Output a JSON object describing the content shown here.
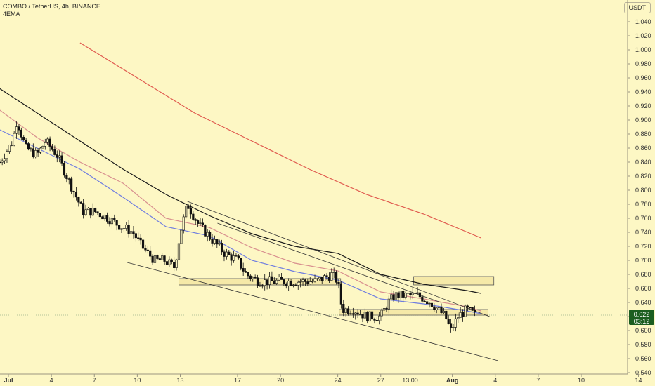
{
  "header": {
    "title": "COMBO / TetherUS, 4h, BINANCE",
    "indicator": "4EMA",
    "currency": "USDT"
  },
  "price_tag": {
    "price": "0.622",
    "countdown": "03:12",
    "color": "#1b5e20"
  },
  "colors": {
    "background": "#fdf7c4",
    "ema_black": "#1a1a1a",
    "ema_red": "#e05a4f",
    "ema_pink": "#d88f8f",
    "ema_blue": "#6f7de0",
    "zone_fill": "#f5e9a8"
  },
  "chart_data": {
    "type": "candlestick",
    "ylim": [
      0.54,
      1.05
    ],
    "y_ticks": [
      "1.040",
      "1.020",
      "1.000",
      "0.980",
      "0.960",
      "0.940",
      "0.920",
      "0.900",
      "0.880",
      "0.860",
      "0.840",
      "0.820",
      "0.800",
      "0.780",
      "0.760",
      "0.740",
      "0.720",
      "0.700",
      "0.680",
      "0.660",
      "0.640",
      "0.620",
      "0.600",
      "0.580",
      "0.560",
      "0.540"
    ],
    "x_ticks": [
      {
        "label": "Jul",
        "day": 1,
        "bold": true
      },
      {
        "label": "4",
        "day": 4
      },
      {
        "label": "7",
        "day": 7
      },
      {
        "label": "10",
        "day": 10
      },
      {
        "label": "13",
        "day": 13
      },
      {
        "label": "17",
        "day": 17
      },
      {
        "label": "20",
        "day": 20
      },
      {
        "label": "24",
        "day": 24
      },
      {
        "label": "27",
        "day": 27
      },
      {
        "label": "13:00",
        "day": 29.05
      },
      {
        "label": "Aug",
        "day": 32,
        "bold": true
      },
      {
        "label": "4",
        "day": 35
      },
      {
        "label": "7",
        "day": 38
      },
      {
        "label": "10",
        "day": 41
      },
      {
        "label": "14",
        "day": 45
      }
    ],
    "close_path": [
      [
        0.4,
        0.84
      ],
      [
        1.3,
        0.87
      ],
      [
        1.6,
        0.9
      ],
      [
        2.2,
        0.86
      ],
      [
        3.0,
        0.85
      ],
      [
        3.6,
        0.87
      ],
      [
        4.4,
        0.85
      ],
      [
        5.3,
        0.81
      ],
      [
        6.2,
        0.77
      ],
      [
        7.0,
        0.77
      ],
      [
        8.0,
        0.76
      ],
      [
        8.7,
        0.75
      ],
      [
        9.7,
        0.74
      ],
      [
        10.3,
        0.72
      ],
      [
        11.2,
        0.7
      ],
      [
        11.9,
        0.7
      ],
      [
        12.6,
        0.69
      ],
      [
        13.0,
        0.74
      ],
      [
        13.5,
        0.78
      ],
      [
        14.3,
        0.75
      ],
      [
        15.2,
        0.73
      ],
      [
        16.1,
        0.71
      ],
      [
        17.0,
        0.7
      ],
      [
        17.6,
        0.68
      ],
      [
        18.5,
        0.67
      ],
      [
        19.5,
        0.67
      ],
      [
        20.4,
        0.67
      ],
      [
        21.5,
        0.67
      ],
      [
        22.5,
        0.67
      ],
      [
        23.6,
        0.68
      ],
      [
        24.0,
        0.67
      ],
      [
        24.3,
        0.63
      ],
      [
        25.1,
        0.63
      ],
      [
        26.0,
        0.62
      ],
      [
        27.0,
        0.62
      ],
      [
        27.5,
        0.64
      ],
      [
        28.0,
        0.65
      ],
      [
        28.8,
        0.65
      ],
      [
        29.6,
        0.65
      ],
      [
        30.5,
        0.64
      ],
      [
        31.0,
        0.63
      ],
      [
        31.5,
        0.62
      ],
      [
        31.9,
        0.6
      ],
      [
        32.4,
        0.62
      ],
      [
        33.0,
        0.63
      ],
      [
        33.6,
        0.622
      ]
    ],
    "emas": [
      {
        "color": "#e05a4f",
        "points": [
          [
            6.0,
            1.01
          ],
          [
            10.0,
            0.96
          ],
          [
            14.0,
            0.91
          ],
          [
            18.0,
            0.87
          ],
          [
            22.0,
            0.83
          ],
          [
            26.0,
            0.794
          ],
          [
            30.0,
            0.766
          ],
          [
            34.0,
            0.732
          ]
        ]
      },
      {
        "color": "#1a1a1a",
        "points": [
          [
            0,
            0.95
          ],
          [
            3.0,
            0.91
          ],
          [
            6.0,
            0.87
          ],
          [
            9.0,
            0.83
          ],
          [
            12.0,
            0.794
          ],
          [
            15.0,
            0.764
          ],
          [
            18.0,
            0.738
          ],
          [
            21.0,
            0.72
          ],
          [
            24.0,
            0.71
          ],
          [
            27.0,
            0.68
          ],
          [
            30.0,
            0.666
          ],
          [
            33.0,
            0.657
          ],
          [
            34.0,
            0.653
          ]
        ]
      },
      {
        "color": "#d88f8f",
        "points": [
          [
            0,
            0.92
          ],
          [
            3.0,
            0.875
          ],
          [
            6.0,
            0.84
          ],
          [
            9.0,
            0.81
          ],
          [
            12.0,
            0.76
          ],
          [
            15.0,
            0.747
          ],
          [
            18.0,
            0.718
          ],
          [
            21.0,
            0.696
          ],
          [
            24.0,
            0.685
          ],
          [
            27.0,
            0.655
          ],
          [
            30.0,
            0.645
          ],
          [
            33.0,
            0.634
          ],
          [
            34.0,
            0.628
          ]
        ]
      },
      {
        "color": "#6f7de0",
        "points": [
          [
            0,
            0.89
          ],
          [
            3.0,
            0.86
          ],
          [
            6.0,
            0.83
          ],
          [
            9.0,
            0.79
          ],
          [
            12.0,
            0.748
          ],
          [
            15.0,
            0.735
          ],
          [
            18.0,
            0.7
          ],
          [
            21.0,
            0.684
          ],
          [
            24.0,
            0.672
          ],
          [
            27.0,
            0.645
          ],
          [
            30.0,
            0.638
          ],
          [
            33.0,
            0.628
          ],
          [
            34.0,
            0.624
          ]
        ]
      }
    ],
    "trendlines": [
      {
        "from": [
          9.3,
          0.697
        ],
        "to": [
          35.2,
          0.557
        ]
      },
      {
        "from": [
          13.5,
          0.784
        ],
        "to": [
          34.6,
          0.62
        ]
      },
      {
        "from": [
          15.6,
          0.753
        ],
        "to": [
          31.2,
          0.64
        ]
      }
    ],
    "zones": [
      {
        "x1": 12.9,
        "x2": 24.2,
        "y1": 0.665,
        "y2": 0.674
      },
      {
        "x1": 29.3,
        "x2": 34.9,
        "y1": 0.665,
        "y2": 0.677
      },
      {
        "x1": 24.1,
        "x2": 34.5,
        "y1": 0.622,
        "y2": 0.63
      }
    ],
    "last_price": 0.622,
    "grid": false
  }
}
